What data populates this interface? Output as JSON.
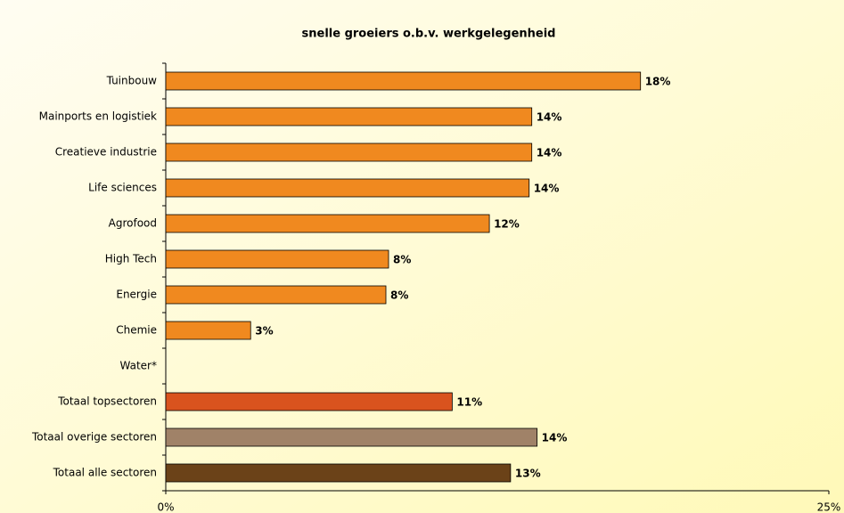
{
  "chart_data": {
    "type": "barh",
    "title": "snelle groeiers o.b.v. werkgelegenheid",
    "categories": [
      "Tuinbouw",
      "Mainports en logistiek",
      "Creatieve industrie",
      "Life sciences",
      "Agrofood",
      "High Tech",
      "Energie",
      "Chemie",
      "Water*",
      "Totaal topsectoren",
      "Totaal overige sectoren",
      "Totaal alle sectoren"
    ],
    "values": [
      17.9,
      13.8,
      13.8,
      13.7,
      12.2,
      8.4,
      8.3,
      3.2,
      null,
      10.8,
      14.0,
      13.0
    ],
    "value_labels": [
      "18%",
      "14%",
      "14%",
      "14%",
      "12%",
      "8%",
      "8%",
      "3%",
      null,
      "11%",
      "14%",
      "13%"
    ],
    "colors": [
      "#f0891f",
      "#f0891f",
      "#f0891f",
      "#f0891f",
      "#f0891f",
      "#f0891f",
      "#f0891f",
      "#f0891f",
      "#f0891f",
      "#d9531e",
      "#a08268",
      "#6b4218"
    ],
    "xlim": [
      0,
      25
    ],
    "xticks": [
      {
        "value": 0,
        "label": "0%"
      },
      {
        "value": 25,
        "label": "25%"
      }
    ]
  }
}
